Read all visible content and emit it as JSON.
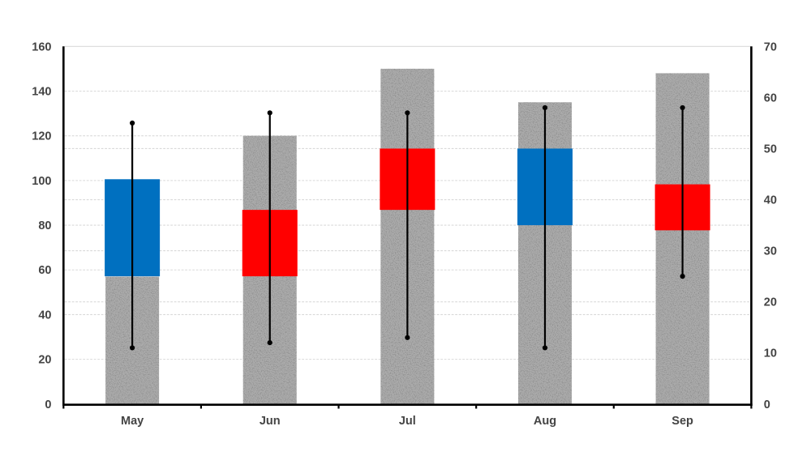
{
  "chart_data": {
    "type": "bar",
    "subtype": "stock volume-open-high-low-close chart (volume columns + up/down candle boxes + high-low whiskers with markers)",
    "title": "",
    "xlabel": "",
    "ylabel": "",
    "categories": [
      "May",
      "Jun",
      "Jul",
      "Aug",
      "Sep"
    ],
    "series": [
      {
        "name": "Volume",
        "kind": "column",
        "axis": "left",
        "values": [
          57,
          120,
          150,
          135,
          148
        ]
      },
      {
        "name": "Open",
        "kind": "candle-open",
        "axis": "right",
        "values": [
          25,
          38,
          50,
          35,
          43
        ]
      },
      {
        "name": "Close",
        "kind": "candle-close",
        "axis": "right",
        "values": [
          44,
          25,
          38,
          50,
          34
        ]
      },
      {
        "name": "High",
        "kind": "whisker-high",
        "axis": "right",
        "values": [
          55,
          57,
          57,
          58,
          58
        ]
      },
      {
        "name": "Low",
        "kind": "whisker-low",
        "axis": "right",
        "values": [
          11,
          12,
          13,
          11,
          25
        ]
      }
    ],
    "points": [
      {
        "category": "May",
        "volume": 57,
        "open": 25,
        "close": 44,
        "high": 55,
        "low": 11,
        "direction": "up"
      },
      {
        "category": "Jun",
        "volume": 120,
        "open": 38,
        "close": 25,
        "high": 57,
        "low": 12,
        "direction": "down"
      },
      {
        "category": "Jul",
        "volume": 150,
        "open": 50,
        "close": 38,
        "high": 57,
        "low": 13,
        "direction": "down"
      },
      {
        "category": "Aug",
        "volume": 135,
        "open": 35,
        "close": 50,
        "high": 58,
        "low": 11,
        "direction": "up"
      },
      {
        "category": "Sep",
        "volume": 148,
        "open": 43,
        "close": 34,
        "high": 58,
        "low": 25,
        "direction": "down"
      }
    ],
    "colors": {
      "up_box": "#0070C0",
      "down_box": "#FF0000",
      "volume_column": "#ACACAC",
      "whisker": "#000000",
      "marker": "#000000",
      "axis_line": "#000000",
      "gridline": "#D9D9D9",
      "tick_label": "#3A3A3A",
      "background": "#FFFFFF"
    },
    "left_axis": {
      "min": 0,
      "max": 160,
      "step": 20,
      "tick_labels": [
        "0",
        "20",
        "40",
        "60",
        "80",
        "100",
        "120",
        "140",
        "160"
      ]
    },
    "right_axis": {
      "min": 0,
      "max": 70,
      "step": 10,
      "tick_labels": [
        "0",
        "10",
        "20",
        "30",
        "40",
        "50",
        "60",
        "70"
      ]
    },
    "gridlines": {
      "left_axis_values": [
        20,
        40,
        60,
        80,
        100,
        120,
        140
      ],
      "right_axis_values": [
        20,
        30,
        40,
        50
      ],
      "top_line_value_left": 160,
      "style": "thin dashed light gray"
    },
    "legend": "none",
    "grid": true
  }
}
